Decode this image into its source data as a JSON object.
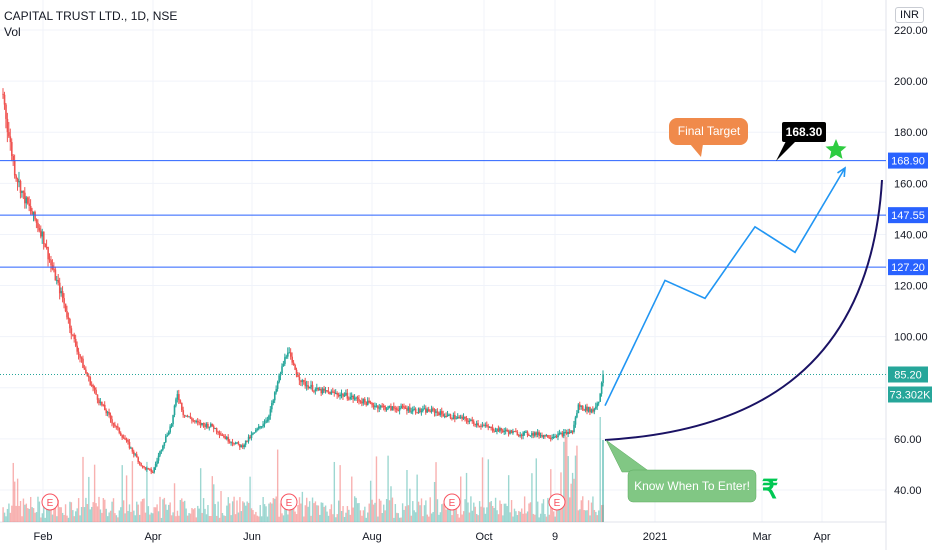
{
  "header": {
    "symbol": "CAPITAL TRUST LTD., 1D, NSE",
    "volume_label": "Vol"
  },
  "currency": "INR",
  "colors": {
    "up": "#26a69a",
    "down": "#ef5350",
    "hline": "#2962ff",
    "projection": "#2196f3",
    "curve": "#1a1264",
    "target_callout": "#f08a4b",
    "enter_callout": "#81c784",
    "star": "#2ecc40",
    "rupee": "#00c853"
  },
  "chart_data": {
    "type": "candlestick",
    "symbol": "CAPITAL TRUST LTD.",
    "interval": "1D",
    "exchange": "NSE",
    "y_axis_ticks": [
      "220.00",
      "200.00",
      "180.00",
      "160.00",
      "140.00",
      "120.00",
      "100.00",
      "60.00",
      "40.00"
    ],
    "y_tick_values": [
      220,
      200,
      180,
      160,
      140,
      120,
      100,
      60,
      40
    ],
    "ylim": [
      32,
      222
    ],
    "x_axis_labels": [
      "Feb",
      "Apr",
      "Jun",
      "Aug",
      "Oct",
      "9",
      "2021",
      "Mar",
      "Apr"
    ],
    "price_anchors": [
      {
        "t": 0,
        "p": 195
      },
      {
        "t": 3,
        "p": 182
      },
      {
        "t": 8,
        "p": 165
      },
      {
        "t": 14,
        "p": 155
      },
      {
        "t": 20,
        "p": 148
      },
      {
        "t": 27,
        "p": 140
      },
      {
        "t": 33,
        "p": 128
      },
      {
        "t": 41,
        "p": 115
      },
      {
        "t": 48,
        "p": 100
      },
      {
        "t": 56,
        "p": 87
      },
      {
        "t": 66,
        "p": 75
      },
      {
        "t": 76,
        "p": 66
      },
      {
        "t": 86,
        "p": 58
      },
      {
        "t": 96,
        "p": 49
      },
      {
        "t": 103,
        "p": 47
      },
      {
        "t": 110,
        "p": 58
      },
      {
        "t": 116,
        "p": 66
      },
      {
        "t": 120,
        "p": 78
      },
      {
        "t": 124,
        "p": 70
      },
      {
        "t": 134,
        "p": 66
      },
      {
        "t": 144,
        "p": 65
      },
      {
        "t": 154,
        "p": 60
      },
      {
        "t": 164,
        "p": 57
      },
      {
        "t": 174,
        "p": 63
      },
      {
        "t": 182,
        "p": 68
      },
      {
        "t": 186,
        "p": 75
      },
      {
        "t": 190,
        "p": 84
      },
      {
        "t": 196,
        "p": 95
      },
      {
        "t": 199,
        "p": 89
      },
      {
        "t": 206,
        "p": 82
      },
      {
        "t": 216,
        "p": 79
      },
      {
        "t": 226,
        "p": 78
      },
      {
        "t": 236,
        "p": 77
      },
      {
        "t": 246,
        "p": 75
      },
      {
        "t": 256,
        "p": 73
      },
      {
        "t": 266,
        "p": 72
      },
      {
        "t": 276,
        "p": 72
      },
      {
        "t": 286,
        "p": 71
      },
      {
        "t": 296,
        "p": 71
      },
      {
        "t": 306,
        "p": 69
      },
      {
        "t": 316,
        "p": 68
      },
      {
        "t": 326,
        "p": 66
      },
      {
        "t": 336,
        "p": 64
      },
      {
        "t": 346,
        "p": 63
      },
      {
        "t": 356,
        "p": 62
      },
      {
        "t": 366,
        "p": 62
      },
      {
        "t": 376,
        "p": 61
      },
      {
        "t": 386,
        "p": 62
      },
      {
        "t": 392,
        "p": 63
      },
      {
        "t": 396,
        "p": 73
      },
      {
        "t": 400,
        "p": 72
      },
      {
        "t": 406,
        "p": 71
      },
      {
        "t": 410,
        "p": 75
      },
      {
        "t": 413,
        "p": 85.2
      }
    ],
    "horizontal_levels": [
      {
        "value": 168.9,
        "label": "168.90"
      },
      {
        "value": 147.55,
        "label": "147.55"
      },
      {
        "value": 127.2,
        "label": "127.20"
      }
    ],
    "last_price": {
      "value": 85.2,
      "label": "85.20"
    },
    "volume_badge": "73.302K",
    "earnings_marker": "E",
    "projection_path": [
      {
        "t": 0,
        "p": 73
      },
      {
        "t": 60,
        "p": 122
      },
      {
        "t": 100,
        "p": 115
      },
      {
        "t": 150,
        "p": 143
      },
      {
        "t": 190,
        "p": 133
      },
      {
        "t": 240,
        "p": 166
      }
    ],
    "annotations": {
      "final_target_label": "Final Target",
      "target_value": "168.30",
      "enter_label": "Know When To Enter!",
      "rupee_symbol": "₹"
    }
  }
}
